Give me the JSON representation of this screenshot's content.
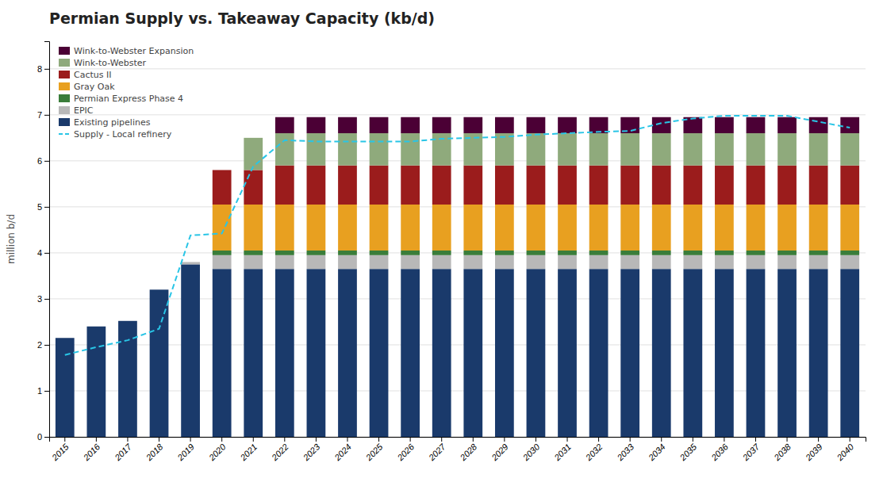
{
  "chart_data": {
    "type": "bar",
    "stacked": true,
    "title": "Permian Supply vs. Takeaway Capacity (kb/d)",
    "y_label": "million b/d",
    "categories": [
      "2015",
      "2016",
      "2017",
      "2018",
      "2019",
      "2020",
      "2021",
      "2022",
      "2023",
      "2024",
      "2025",
      "2026",
      "2027",
      "2028",
      "2029",
      "2030",
      "2031",
      "2032",
      "2033",
      "2034",
      "2035",
      "2036",
      "2037",
      "2038",
      "2039",
      "2040"
    ],
    "series": [
      {
        "name": "Existing pipelines",
        "color": "#1a3a6b",
        "values": [
          2.15,
          2.4,
          2.52,
          3.2,
          3.75,
          3.65,
          3.65,
          3.65,
          3.65,
          3.65,
          3.65,
          3.65,
          3.65,
          3.65,
          3.65,
          3.65,
          3.65,
          3.65,
          3.65,
          3.65,
          3.65,
          3.65,
          3.65,
          3.65,
          3.65,
          3.65
        ]
      },
      {
        "name": "EPIC",
        "color": "#b8b8b8",
        "values": [
          0.0,
          0.0,
          0.0,
          0.0,
          0.05,
          0.3,
          0.3,
          0.3,
          0.3,
          0.3,
          0.3,
          0.3,
          0.3,
          0.3,
          0.3,
          0.3,
          0.3,
          0.3,
          0.3,
          0.3,
          0.3,
          0.3,
          0.3,
          0.3,
          0.3,
          0.3
        ]
      },
      {
        "name": "Permian Express Phase 4",
        "color": "#3a7d3a",
        "values": [
          0.0,
          0.0,
          0.0,
          0.0,
          0.0,
          0.1,
          0.1,
          0.1,
          0.1,
          0.1,
          0.1,
          0.1,
          0.1,
          0.1,
          0.1,
          0.1,
          0.1,
          0.1,
          0.1,
          0.1,
          0.1,
          0.1,
          0.1,
          0.1,
          0.1,
          0.1
        ]
      },
      {
        "name": "Gray Oak",
        "color": "#e8a020",
        "values": [
          0.0,
          0.0,
          0.0,
          0.0,
          0.0,
          1.0,
          1.0,
          1.0,
          1.0,
          1.0,
          1.0,
          1.0,
          1.0,
          1.0,
          1.0,
          1.0,
          1.0,
          1.0,
          1.0,
          1.0,
          1.0,
          1.0,
          1.0,
          1.0,
          1.0,
          1.0
        ]
      },
      {
        "name": "Cactus II",
        "color": "#9b1c1c",
        "values": [
          0.0,
          0.0,
          0.0,
          0.0,
          0.0,
          0.75,
          0.75,
          0.85,
          0.85,
          0.85,
          0.85,
          0.85,
          0.85,
          0.85,
          0.85,
          0.85,
          0.85,
          0.85,
          0.85,
          0.85,
          0.85,
          0.85,
          0.85,
          0.85,
          0.85,
          0.85
        ]
      },
      {
        "name": "Wink-to-Webster",
        "color": "#8faa7c",
        "values": [
          0.0,
          0.0,
          0.0,
          0.0,
          0.0,
          0.0,
          0.7,
          0.7,
          0.7,
          0.7,
          0.7,
          0.7,
          0.7,
          0.7,
          0.7,
          0.7,
          0.7,
          0.7,
          0.7,
          0.7,
          0.7,
          0.7,
          0.7,
          0.7,
          0.7,
          0.7
        ]
      },
      {
        "name": "Wink-to-Webster Expansion",
        "color": "#4b0035",
        "values": [
          0.0,
          0.0,
          0.0,
          0.0,
          0.0,
          0.0,
          0.0,
          0.35,
          0.35,
          0.35,
          0.35,
          0.35,
          0.35,
          0.35,
          0.35,
          0.35,
          0.35,
          0.35,
          0.35,
          0.35,
          0.35,
          0.35,
          0.35,
          0.35,
          0.35,
          0.35
        ]
      },
      {
        "name": "Supply - Local refinery",
        "type": "line",
        "line_style": "dashed",
        "color": "#29c5e6",
        "values": [
          1.78,
          1.95,
          2.1,
          2.35,
          4.38,
          4.42,
          5.88,
          6.45,
          6.42,
          6.42,
          6.42,
          6.42,
          6.48,
          6.5,
          6.52,
          6.57,
          6.6,
          6.63,
          6.65,
          6.82,
          6.92,
          6.98,
          6.98,
          6.98,
          6.85,
          6.72
        ]
      }
    ],
    "ylim": [
      0,
      8.6
    ],
    "yticks": [
      0,
      1,
      2,
      3,
      4,
      5,
      6,
      7,
      8
    ],
    "grid": true,
    "legend": "upper left"
  }
}
